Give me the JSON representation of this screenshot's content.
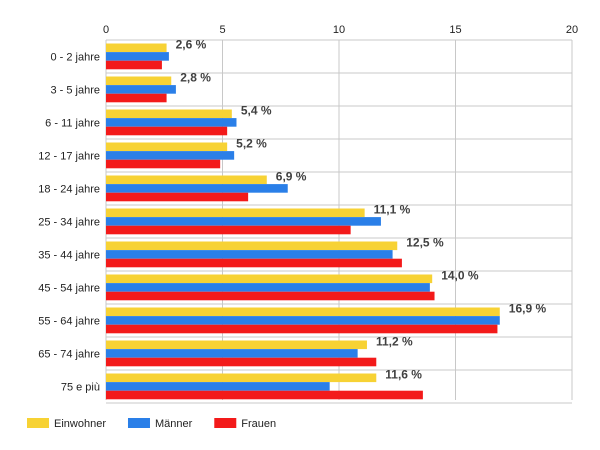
{
  "chart_data": {
    "type": "bar",
    "orientation": "horizontal",
    "categories": [
      "0 - 2 jahre",
      "3 - 5 jahre",
      "6 - 11 jahre",
      "12 - 17 jahre",
      "18 - 24 jahre",
      "25 - 34 jahre",
      "35 - 44 jahre",
      "45 - 54 jahre",
      "55 - 64 jahre",
      "65 - 74 jahre",
      "75 e più"
    ],
    "series": [
      {
        "name": "Einwohner",
        "color": "#f7d234",
        "values": [
          2.6,
          2.8,
          5.4,
          5.2,
          6.9,
          11.1,
          12.5,
          14.0,
          16.9,
          11.2,
          11.6
        ]
      },
      {
        "name": "Männer",
        "color": "#2a7fe8",
        "values": [
          2.7,
          3.0,
          5.6,
          5.5,
          7.8,
          11.8,
          12.3,
          13.9,
          16.9,
          10.8,
          9.6
        ]
      },
      {
        "name": "Frauen",
        "color": "#f31a1a",
        "values": [
          2.4,
          2.6,
          5.2,
          4.9,
          6.1,
          10.5,
          12.7,
          14.1,
          16.8,
          11.6,
          13.6
        ]
      }
    ],
    "data_labels": [
      "2,6 %",
      "2,8 %",
      "5,4 %",
      "5,2 %",
      "6,9 %",
      "11,1 %",
      "12,5 %",
      "14,0 %",
      "16,9 %",
      "11,2 %",
      "11,6 %"
    ],
    "x_ticks": [
      "0",
      "5",
      "10",
      "15",
      "20"
    ],
    "xlim": [
      0,
      20
    ],
    "xaxis_position": "top",
    "grid": true,
    "legend_position": "bottom-left"
  }
}
